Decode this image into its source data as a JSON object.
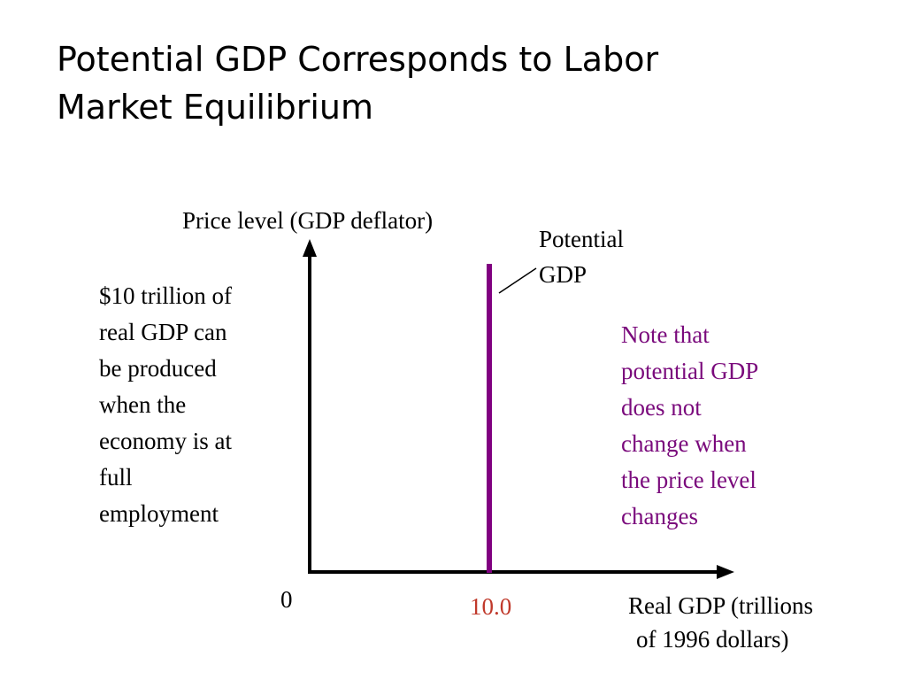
{
  "title": {
    "line1": "Potential GDP Corresponds to Labor",
    "line2": "Market Equilibrium"
  },
  "y_axis": {
    "label": "Price level (GDP deflator)"
  },
  "x_axis": {
    "label_line1": "Real GDP (trillions",
    "label_line2": "of 1996 dollars)",
    "origin_label": "0",
    "tick_label": "10.0"
  },
  "potential_gdp_label": {
    "line1": "Potential",
    "line2": "GDP"
  },
  "left_note": {
    "lines": [
      "$10 trillion of",
      "real GDP can",
      "be produced",
      "when the",
      "economy is at",
      "full",
      "employment"
    ]
  },
  "right_note": {
    "lines": [
      "Note that",
      "potential GDP",
      "does not",
      "change when",
      "the price level",
      "changes"
    ]
  },
  "colors": {
    "axis": "#000000",
    "potential_gdp_line": "#800080",
    "tick_label": "#c0392b",
    "note_text": "#7a0a7c"
  }
}
